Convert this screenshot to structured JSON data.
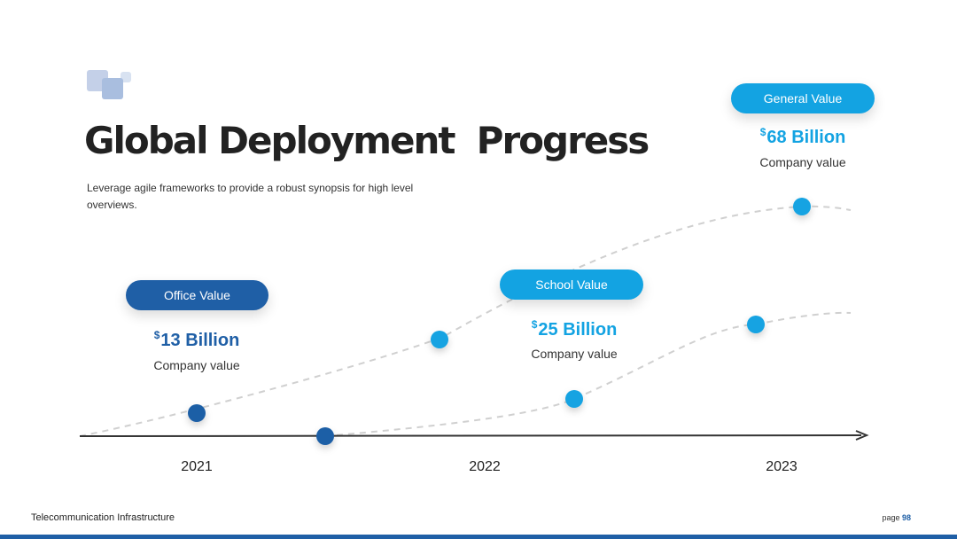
{
  "header": {
    "title": "Global Deployment  Progress",
    "subtitle": "Leverage agile frameworks to provide a robust synopsis for high level overviews."
  },
  "callouts": [
    {
      "label": "Office Value",
      "currency": "$",
      "amount": "13 Billion",
      "caption": "Company value",
      "color": "#1f5fa6"
    },
    {
      "label": "School Value",
      "currency": "$",
      "amount": "25 Billion",
      "caption": "Company value",
      "color": "#13a3e2"
    },
    {
      "label": "General Value",
      "currency": "$",
      "amount": "68 Billion",
      "caption": "Company value",
      "color": "#13a3e2"
    }
  ],
  "timeline": {
    "years": [
      "2021",
      "2022",
      "2023"
    ]
  },
  "footer": {
    "left": "Telecommunication Infrastructure",
    "page_label": "page",
    "page_number": "98"
  },
  "colors": {
    "dark_blue": "#1f5fa6",
    "light_blue": "#13a3e2",
    "axis": "#333333",
    "dashed": "#d0d0d0"
  }
}
